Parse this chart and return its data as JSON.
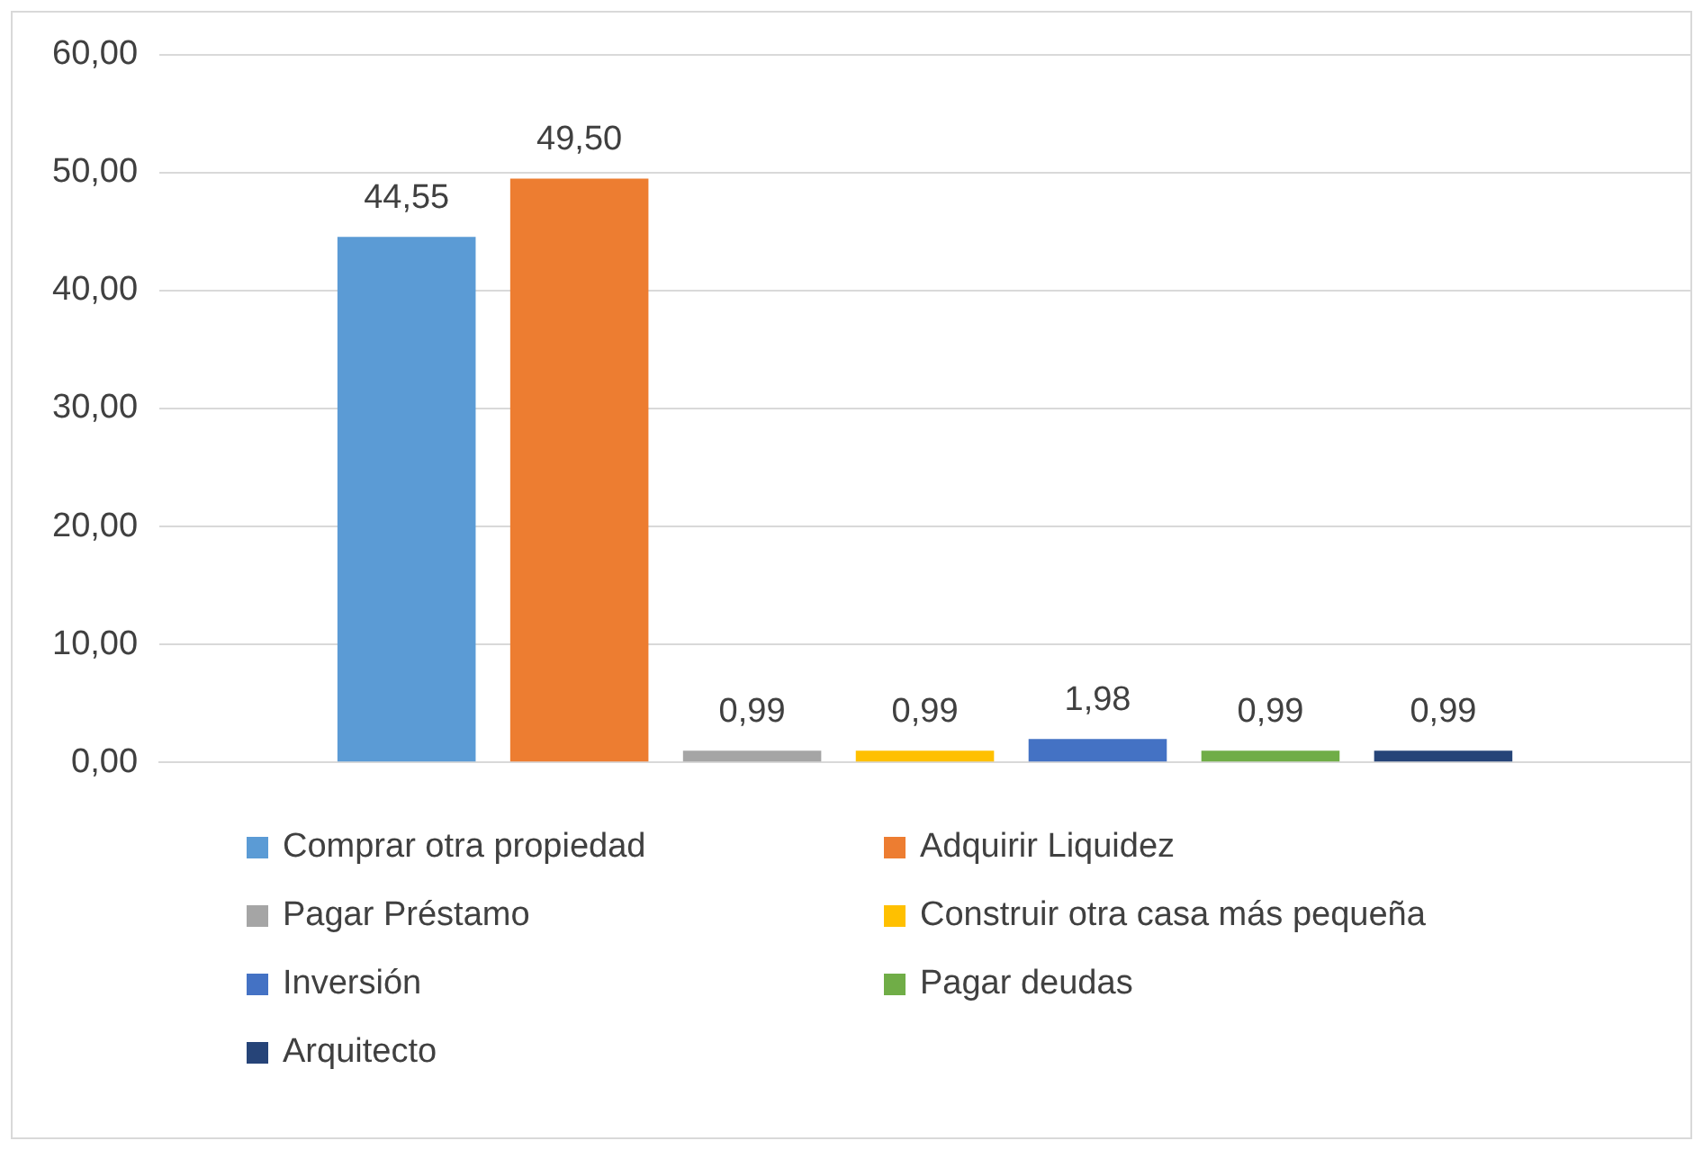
{
  "chart_data": {
    "type": "bar",
    "categories": [
      null
    ],
    "series": [
      {
        "name": "Comprar otra propiedad",
        "color": "#5b9bd5",
        "values": [
          44.55
        ],
        "value_labels": [
          "44,55"
        ]
      },
      {
        "name": "Adquirir Liquidez",
        "color": "#ed7d31",
        "values": [
          49.5
        ],
        "value_labels": [
          "49,50"
        ]
      },
      {
        "name": "Pagar Préstamo",
        "color": "#a5a5a5",
        "values": [
          0.99
        ],
        "value_labels": [
          "0,99"
        ]
      },
      {
        "name": "Construir otra casa más pequeña",
        "color": "#ffc000",
        "values": [
          0.99
        ],
        "value_labels": [
          "0,99"
        ]
      },
      {
        "name": "Inversión",
        "color": "#4472c4",
        "values": [
          1.98
        ],
        "value_labels": [
          "1,98"
        ]
      },
      {
        "name": "Pagar deudas",
        "color": "#70ad47",
        "values": [
          0.99
        ],
        "value_labels": [
          "0,99"
        ]
      },
      {
        "name": "Arquitecto",
        "color": "#264478",
        "values": [
          0.99
        ],
        "value_labels": [
          "0,99"
        ]
      }
    ],
    "ylim": [
      0,
      60
    ],
    "yticks": [
      {
        "value": 0,
        "label": "0,00"
      },
      {
        "value": 10,
        "label": "10,00"
      },
      {
        "value": 20,
        "label": "20,00"
      },
      {
        "value": 30,
        "label": "30,00"
      },
      {
        "value": 40,
        "label": "40,00"
      },
      {
        "value": 50,
        "label": "50,00"
      },
      {
        "value": 60,
        "label": "60,00"
      }
    ],
    "grid": "y",
    "legend": "bottom"
  }
}
